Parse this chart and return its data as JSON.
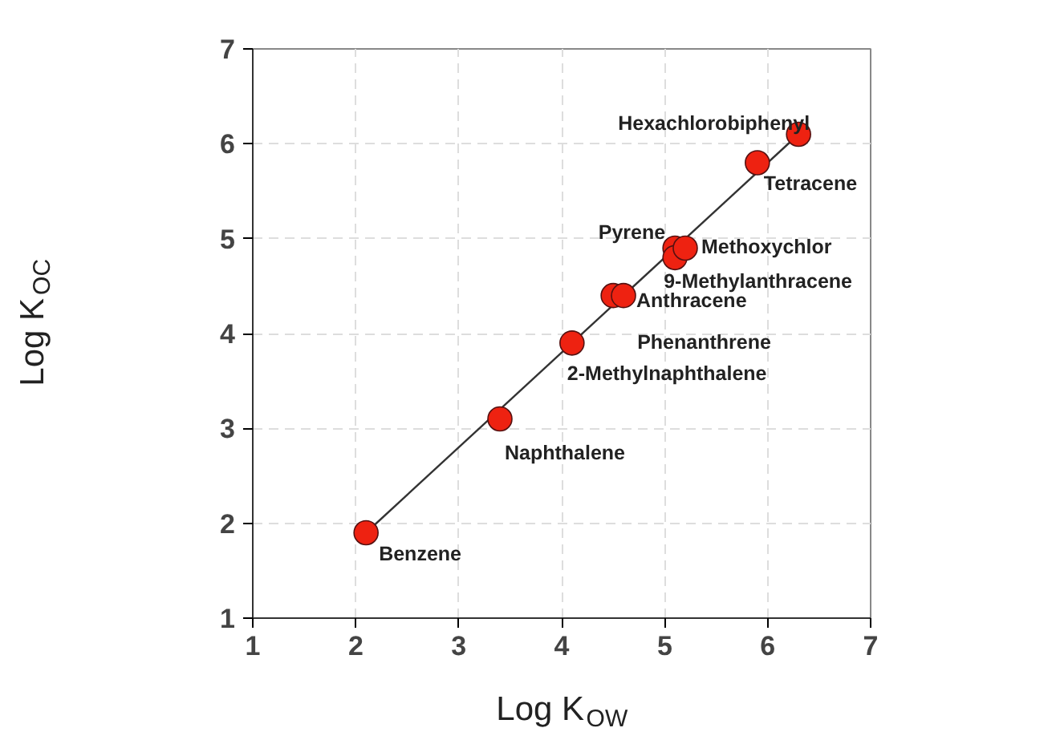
{
  "chart_data": {
    "type": "scatter",
    "xlabel": "Log K$_{OW}$",
    "ylabel": "Log K$_{OC}$",
    "xlim": [
      1,
      7
    ],
    "ylim": [
      1,
      7
    ],
    "xticks": [
      1,
      2,
      3,
      4,
      5,
      6,
      7
    ],
    "yticks": [
      1,
      2,
      3,
      4,
      5,
      6,
      7
    ],
    "grid": true,
    "series": [
      {
        "color": "#ee2211",
        "marker": "circle",
        "x": [
          2.1,
          3.4,
          4.1,
          4.5,
          4.6,
          5.1,
          5.1,
          5.2,
          5.9,
          6.3
        ],
        "values": [
          1.9,
          3.1,
          3.9,
          4.4,
          4.4,
          4.9,
          4.8,
          4.9,
          5.8,
          6.1
        ]
      },
      {
        "type": "line",
        "color": "#333333",
        "marker": "none",
        "x": [
          2.1,
          6.3
        ],
        "values": [
          1.9,
          6.1
        ]
      }
    ],
    "annotations": [
      {
        "text": "Benzene",
        "x": 2.1,
        "y": 1.9
      },
      {
        "text": "Naphthalene",
        "x": 3.4,
        "y": 3.1
      },
      {
        "text": "2-Methylnaphthalene",
        "x": 4.1,
        "y": 3.9
      },
      {
        "text": "Phenanthrene",
        "x": 4.5,
        "y": 4.4
      },
      {
        "text": "Anthracene",
        "x": 4.6,
        "y": 4.4
      },
      {
        "text": "Pyrene",
        "x": 5.1,
        "y": 4.9
      },
      {
        "text": "9-Methylanthracene",
        "x": 5.1,
        "y": 4.8
      },
      {
        "text": "Methoxychlor",
        "x": 5.2,
        "y": 4.9
      },
      {
        "text": "Tetracene",
        "x": 5.9,
        "y": 5.8
      },
      {
        "text": "Hexachlorobiphenyl",
        "x": 6.3,
        "y": 6.1
      }
    ]
  }
}
